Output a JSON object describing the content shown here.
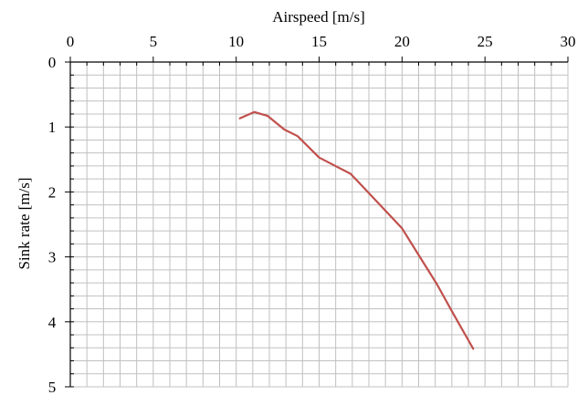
{
  "chart_data": {
    "type": "line",
    "title": "",
    "xlabel": "Airspeed [m/s]",
    "ylabel": "Sink rate [m/s]",
    "x_axis_position": "top",
    "y_axis_inverted": true,
    "xlim": [
      0,
      30
    ],
    "ylim": [
      0,
      5
    ],
    "x_ticks": [
      0,
      5,
      10,
      15,
      20,
      25,
      30
    ],
    "y_ticks": [
      0,
      1,
      2,
      3,
      4,
      5
    ],
    "x_tick_labels": [
      "0",
      "5",
      "10",
      "15",
      "20",
      "25",
      "30"
    ],
    "y_tick_labels": [
      "0",
      "1",
      "2",
      "3",
      "4",
      "5"
    ],
    "grid": true,
    "legend": "none",
    "series": [
      {
        "color": "#c0504d",
        "x": [
          10.2,
          11.1,
          11.9,
          12.9,
          13.7,
          15.0,
          15.9,
          16.9,
          17.9,
          20.0,
          21.0,
          22.1,
          23.1,
          24.3
        ],
        "y": [
          0.87,
          0.77,
          0.83,
          1.04,
          1.14,
          1.47,
          1.59,
          1.72,
          1.99,
          2.56,
          2.97,
          3.42,
          3.88,
          4.42
        ]
      }
    ]
  }
}
